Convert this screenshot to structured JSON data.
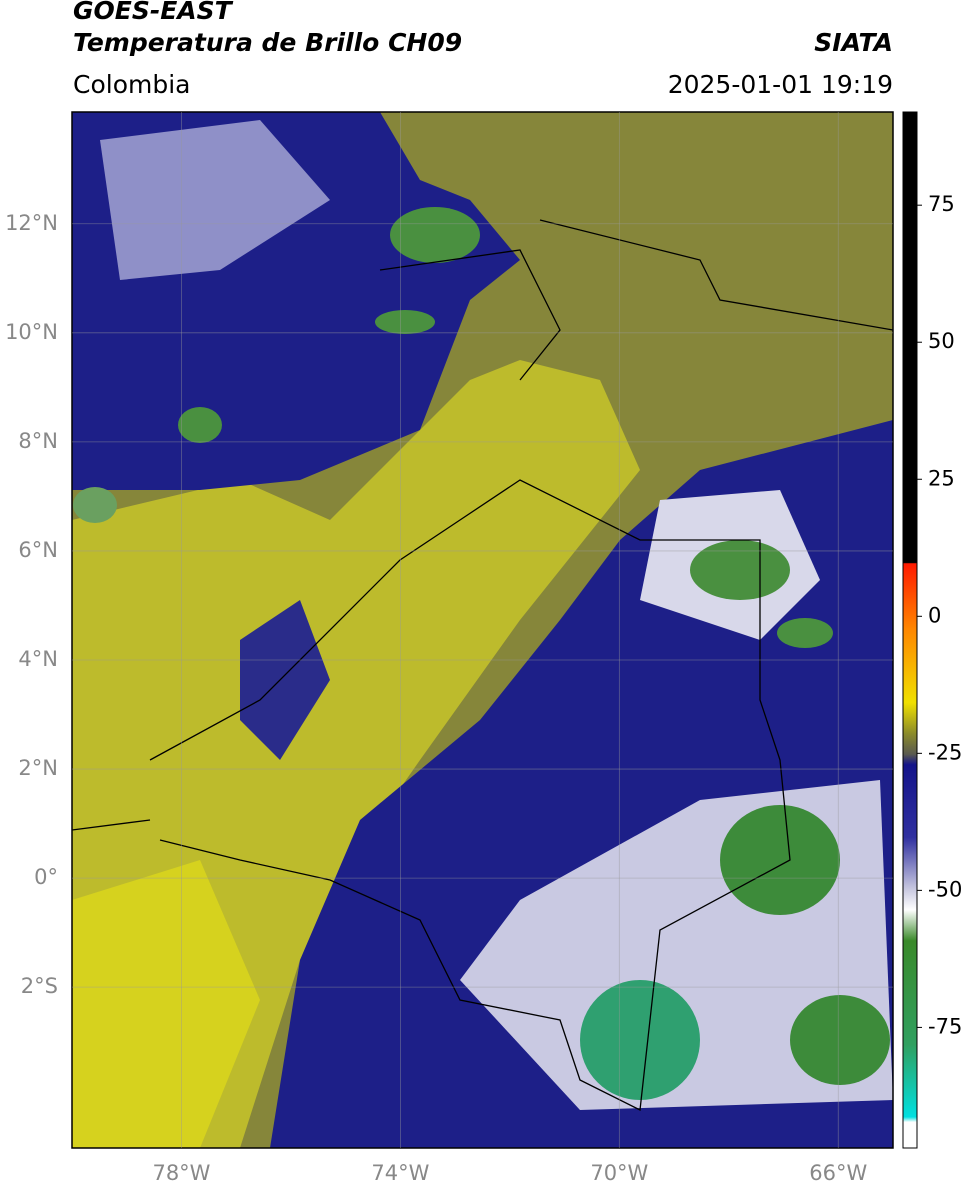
{
  "header": {
    "title": "GOES-EAST",
    "subtitle": "Temperatura de Brillo CH09",
    "region": "Colombia",
    "source": "SIATA",
    "timestamp": "2025-01-01 19:19"
  },
  "map": {
    "xlim": [
      -80,
      -65
    ],
    "ylim": [
      -4.95,
      14.05
    ],
    "xticks": [
      {
        "value": -78,
        "label": "78°W"
      },
      {
        "value": -74,
        "label": "74°W"
      },
      {
        "value": -70,
        "label": "70°W"
      },
      {
        "value": -66,
        "label": "66°W"
      }
    ],
    "yticks": [
      {
        "value": 12,
        "label": "12°N"
      },
      {
        "value": 10,
        "label": "10°N"
      },
      {
        "value": 8,
        "label": "8°N"
      },
      {
        "value": 6,
        "label": "6°N"
      },
      {
        "value": 4,
        "label": "4°N"
      },
      {
        "value": 2,
        "label": "2°N"
      },
      {
        "value": 0,
        "label": "0°"
      },
      {
        "value": -2,
        "label": "2°S"
      }
    ],
    "grid": true
  },
  "colorbar": {
    "lim": [
      -97,
      92
    ],
    "ticks": [
      75,
      50,
      25,
      0,
      -25,
      -50,
      -75
    ]
  }
}
